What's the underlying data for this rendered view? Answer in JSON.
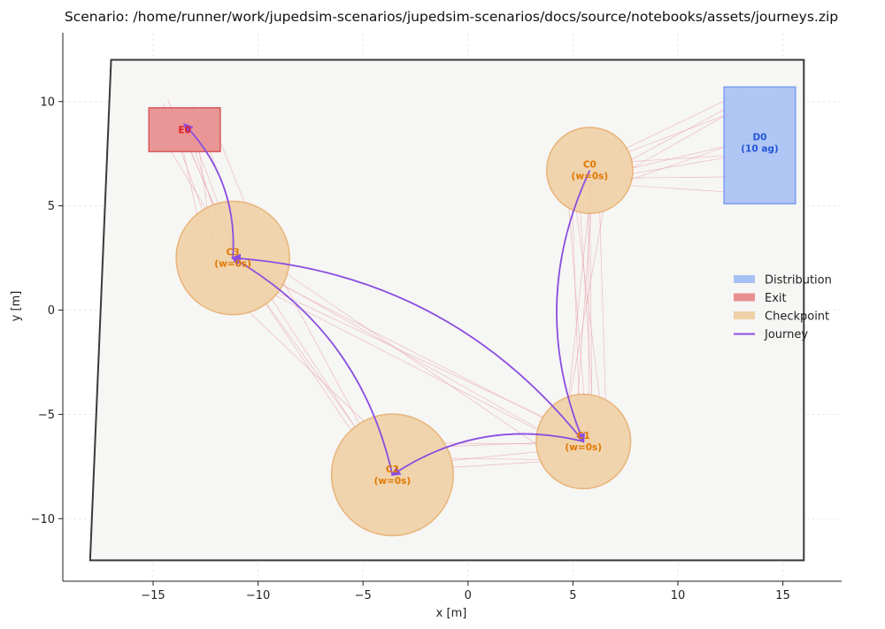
{
  "chart_data": {
    "type": "scatter",
    "title": "Scenario: /home/runner/work/jupedsim-scenarios/jupedsim-scenarios/docs/source/notebooks/assets/journeys.zip",
    "xlabel": "x [m]",
    "ylabel": "y [m]",
    "xlim": [
      -19.3,
      17.8
    ],
    "ylim": [
      -13.0,
      13.3
    ],
    "xticks": [
      -15,
      -10,
      -5,
      0,
      5,
      10,
      15
    ],
    "yticks": [
      -10,
      -5,
      0,
      5,
      10
    ],
    "xtick_labels": [
      "−15",
      "−10",
      "−5",
      "0",
      "5",
      "10",
      "15"
    ],
    "ytick_labels": [
      "−10",
      "−5",
      "0",
      "5",
      "10"
    ],
    "grid": true,
    "walkable_area": [
      [
        -17.0,
        12.0
      ],
      [
        16.0,
        12.0
      ],
      [
        16.0,
        -12.0
      ],
      [
        -18.0,
        -12.0
      ]
    ],
    "exits": [
      {
        "id": "E0",
        "label": "E0",
        "x0": -15.2,
        "x1": -11.8,
        "y0": 7.6,
        "y1": 9.7
      }
    ],
    "distributions": [
      {
        "id": "D0",
        "label_line1": "D0",
        "label_line2": "(10 ag)",
        "x0": 12.2,
        "x1": 15.6,
        "y0": 5.1,
        "y1": 10.7
      }
    ],
    "checkpoints": [
      {
        "id": "C0",
        "label_line1": "C0",
        "label_line2": "(w=0s)",
        "cx": 5.8,
        "cy": 6.7,
        "r": 2.05
      },
      {
        "id": "C1",
        "label_line1": "C1",
        "label_line2": "(w=0s)",
        "cx": 5.5,
        "cy": -6.3,
        "r": 2.25
      },
      {
        "id": "C2",
        "label_line1": "C2",
        "label_line2": "(w=0s)",
        "cx": -3.6,
        "cy": -7.9,
        "r": 2.9
      },
      {
        "id": "C3",
        "label_line1": "C3",
        "label_line2": "(w=0s)",
        "cx": -11.2,
        "cy": 2.5,
        "r": 2.7
      }
    ],
    "journeys": [
      {
        "from": "C0",
        "to": "C1"
      },
      {
        "from": "C1",
        "to": "C2"
      },
      {
        "from": "C2",
        "to": "C3"
      },
      {
        "from": "C1",
        "to": "C3"
      },
      {
        "from": "C3",
        "to": "E0"
      }
    ],
    "legend": {
      "placement": "center-right",
      "entries": [
        {
          "label": "Distribution",
          "kind": "patch",
          "color": "#a8c1f4"
        },
        {
          "label": "Exit",
          "kind": "patch",
          "color": "#e89090"
        },
        {
          "label": "Checkpoint",
          "kind": "patch",
          "color": "#efd0a6"
        },
        {
          "label": "Journey",
          "kind": "line",
          "color": "#8a4de0"
        }
      ]
    },
    "colors": {
      "walkable_fill": "#f6f6f4",
      "walkable_edge": "#3a3a3a",
      "distribution_fill": "#a8c1f4",
      "distribution_edge": "#7a9ef0",
      "distribution_text": "#2357d6",
      "exit_fill": "#e89090",
      "exit_edge": "#d85a5a",
      "exit_text": "#e02020",
      "checkpoint_fill": "#efd0a6",
      "checkpoint_edge": "#e8b47a",
      "checkpoint_text": "#e07800",
      "journey": "#8a4de0",
      "trajectory": "#eaa7b0"
    }
  }
}
